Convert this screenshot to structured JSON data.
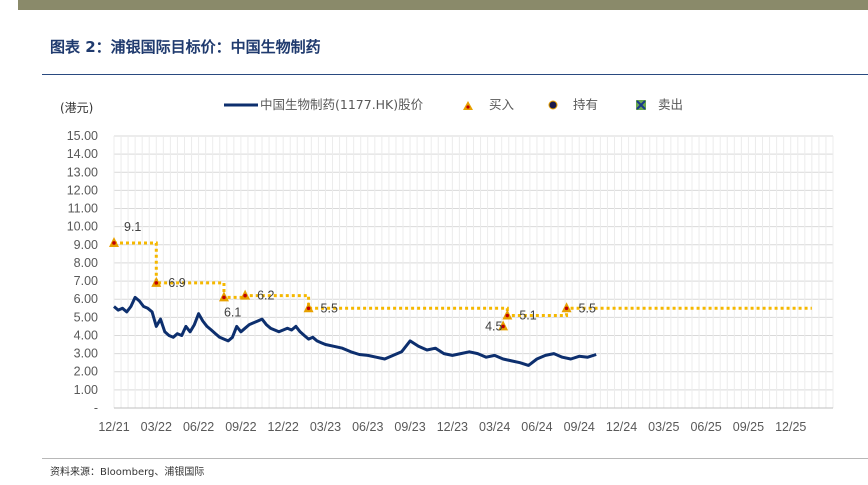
{
  "header": {
    "figure_title": "图表 2：浦银国际目标价：中国生物制药"
  },
  "footer": {
    "source": "资料来源：Bloomberg、浦银国际"
  },
  "colors": {
    "price_line": "#0d2f6e",
    "target_line": "#f5b800",
    "buy_marker": "#e8a100",
    "buy_marker_center": "#c00000",
    "grid": "#d9d9d9"
  },
  "chart_data": {
    "type": "line",
    "ylabel": "(港元)",
    "ylim": [
      0,
      15
    ],
    "y_ticks": [
      "-",
      "1.00",
      "2.00",
      "3.00",
      "4.00",
      "5.00",
      "6.00",
      "7.00",
      "8.00",
      "9.00",
      "10.00",
      "11.00",
      "12.00",
      "13.00",
      "14.00",
      "15.00"
    ],
    "x_ticks": [
      "12/21",
      "03/22",
      "06/22",
      "09/22",
      "12/22",
      "03/23",
      "06/23",
      "09/23",
      "12/23",
      "03/24",
      "06/24",
      "09/24",
      "12/24",
      "03/25",
      "06/25",
      "09/25",
      "12/25"
    ],
    "legend": [
      {
        "key": "price",
        "label": "中国生物制药(1177.HK)股价",
        "icon": "line"
      },
      {
        "key": "buy",
        "label": "买入",
        "icon": "triangle-icon"
      },
      {
        "key": "hold",
        "label": "持有",
        "icon": "circle-icon"
      },
      {
        "key": "sell",
        "label": "卖出",
        "icon": "x-square-icon"
      }
    ],
    "legend_position": "top",
    "grid": true,
    "series": [
      {
        "name": "中国生物制药(1177.HK)股价",
        "x": [
          0,
          0.1,
          0.2,
          0.3,
          0.4,
          0.5,
          0.6,
          0.7,
          0.8,
          0.9,
          1.0,
          1.1,
          1.2,
          1.3,
          1.4,
          1.5,
          1.6,
          1.7,
          1.8,
          1.9,
          2.0,
          2.1,
          2.2,
          2.3,
          2.4,
          2.5,
          2.6,
          2.7,
          2.8,
          2.9,
          3.0,
          3.1,
          3.2,
          3.3,
          3.4,
          3.5,
          3.6,
          3.7,
          3.8,
          3.9,
          4.0,
          4.1,
          4.2,
          4.3,
          4.4,
          4.5,
          4.6,
          4.7,
          4.8,
          4.9,
          5.0,
          5.2,
          5.4,
          5.6,
          5.8,
          6.0,
          6.2,
          6.4,
          6.6,
          6.8,
          7.0,
          7.2,
          7.4,
          7.6,
          7.8,
          8.0,
          8.2,
          8.4,
          8.6,
          8.8,
          9.0,
          9.2,
          9.4,
          9.6,
          9.8,
          10.0,
          10.2,
          10.4,
          10.6,
          10.8,
          11.0,
          11.2,
          11.4
        ],
        "values": [
          5.6,
          5.4,
          5.5,
          5.3,
          5.6,
          6.1,
          5.9,
          5.6,
          5.5,
          5.3,
          4.5,
          4.9,
          4.2,
          4.0,
          3.9,
          4.1,
          4.0,
          4.5,
          4.2,
          4.6,
          5.2,
          4.8,
          4.5,
          4.3,
          4.1,
          3.9,
          3.8,
          3.7,
          3.9,
          4.5,
          4.2,
          4.4,
          4.6,
          4.7,
          4.8,
          4.9,
          4.6,
          4.4,
          4.3,
          4.2,
          4.3,
          4.4,
          4.3,
          4.5,
          4.2,
          4.0,
          3.8,
          3.9,
          3.7,
          3.6,
          3.5,
          3.4,
          3.3,
          3.1,
          2.95,
          2.9,
          2.8,
          2.7,
          2.9,
          3.1,
          3.7,
          3.4,
          3.2,
          3.3,
          3.0,
          2.9,
          3.0,
          3.1,
          3.0,
          2.8,
          2.9,
          2.7,
          2.6,
          2.5,
          2.35,
          2.7,
          2.9,
          3.0,
          2.8,
          2.7,
          2.85,
          2.8,
          2.95
        ]
      },
      {
        "name": "目标价",
        "steps": [
          {
            "x": 0.0,
            "value": 9.1
          },
          {
            "x": 1.0,
            "value": 6.9
          },
          {
            "x": 2.6,
            "value": 6.1
          },
          {
            "x": 3.1,
            "value": 6.2
          },
          {
            "x": 4.6,
            "value": 5.5
          },
          {
            "x": 9.3,
            "value": 5.1
          },
          {
            "x": 10.7,
            "value": 5.5
          }
        ],
        "x_end": 16.5
      }
    ],
    "markers": [
      {
        "type": "buy",
        "x": 0.0,
        "value": 9.1,
        "label": "9.1",
        "label_pos": "above"
      },
      {
        "type": "buy",
        "x": 1.0,
        "value": 6.9,
        "label": "6.9",
        "label_pos": "right"
      },
      {
        "type": "buy",
        "x": 2.6,
        "value": 6.1,
        "label": "6.1",
        "label_pos": "below"
      },
      {
        "type": "buy",
        "x": 3.1,
        "value": 6.2,
        "label": "6.2",
        "label_pos": "right"
      },
      {
        "type": "buy",
        "x": 4.6,
        "value": 5.5,
        "label": "5.5",
        "label_pos": "right"
      },
      {
        "type": "buy",
        "x": 9.2,
        "value": 4.5,
        "label": "4.5",
        "label_pos": "left"
      },
      {
        "type": "buy",
        "x": 9.3,
        "value": 5.1,
        "label": "5.1",
        "label_pos": "right"
      },
      {
        "type": "buy",
        "x": 10.7,
        "value": 5.5,
        "label": "5.5",
        "label_pos": "right"
      }
    ]
  }
}
